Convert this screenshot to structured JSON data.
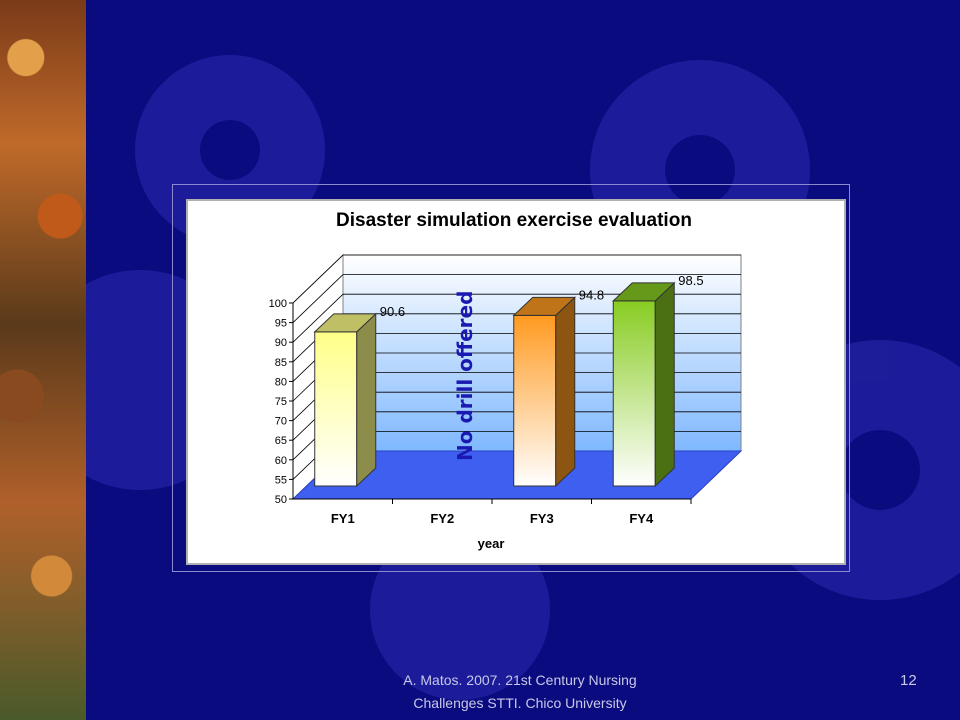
{
  "slide": {
    "footer_line1": "A. Matos. 2007.   21st Century Nursing",
    "footer_line2": "Challenges STTI. Chico University",
    "slide_number": "12",
    "colors": {
      "background": "#0b0b80",
      "gear": "#3a3ab8",
      "floor": "#3f5ff0"
    }
  },
  "chart_data": {
    "type": "bar",
    "title": "Disaster simulation exercise evaluation",
    "xlabel": "year",
    "ylabel": "",
    "categories": [
      "FY1",
      "FY2",
      "FY3",
      "FY4"
    ],
    "values": [
      90.6,
      null,
      94.8,
      98.5
    ],
    "value_labels": [
      "90.6",
      "",
      "94.8",
      "98.5"
    ],
    "bar_colors": [
      "#ffff88",
      null,
      "#ff9a20",
      "#88cc22"
    ],
    "ylim": [
      50,
      100
    ],
    "yticks": [
      "50",
      "55",
      "60",
      "65",
      "70",
      "75",
      "80",
      "85",
      "90",
      "95",
      "100"
    ],
    "annotation": "No drill offered",
    "grid": true,
    "style": "3d-column"
  }
}
